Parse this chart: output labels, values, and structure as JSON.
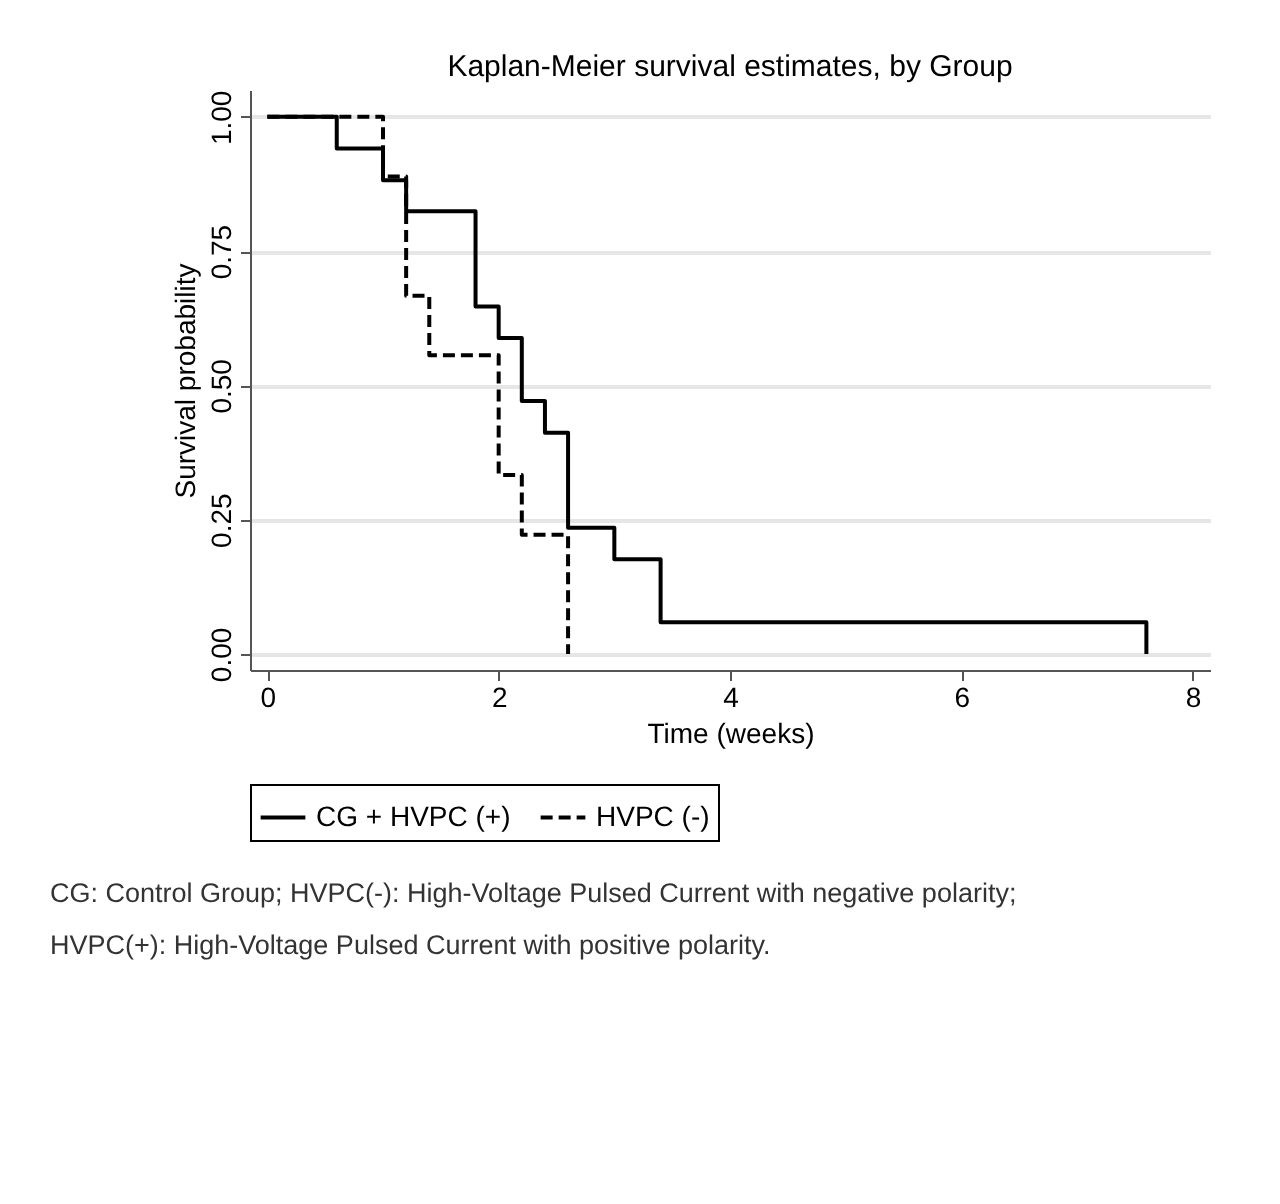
{
  "chart_data": {
    "type": "step",
    "title": "Kaplan-Meier survival estimates, by Group",
    "xlabel": "Time (weeks)",
    "ylabel": "Survival probability",
    "series": [
      {
        "name": "CG + HVPC (+)",
        "color": "#000000",
        "line_style": "solid",
        "x": [
          0,
          0.6,
          1.0,
          1.2,
          1.8,
          2.0,
          2.2,
          2.4,
          2.6,
          3.0,
          3.4,
          7.6
        ],
        "values": [
          1.0,
          0.941,
          0.882,
          0.824,
          0.647,
          0.588,
          0.471,
          0.412,
          0.235,
          0.176,
          0.059,
          0.0
        ]
      },
      {
        "name": "HVPC (-)",
        "color": "#000000",
        "line_style": "dashed",
        "x": [
          0,
          1.0,
          1.2,
          1.4,
          2.0,
          2.2,
          2.6
        ],
        "values": [
          1.0,
          0.889,
          0.667,
          0.556,
          0.333,
          0.222,
          0.0
        ]
      }
    ],
    "xlim": [
      -0.15,
      8.15
    ],
    "xticks": [
      0,
      2,
      4,
      6,
      8
    ],
    "ylim": [
      -0.03,
      1.05
    ],
    "yticks": [
      {
        "value": 0,
        "label": "0.00"
      },
      {
        "value": 0.25,
        "label": "0.25"
      },
      {
        "value": 0.5,
        "label": "0.50"
      },
      {
        "value": 0.75,
        "label": "0.75"
      },
      {
        "value": 1,
        "label": "1.00"
      }
    ],
    "grid": "y",
    "legend": "bottom",
    "annotations": [
      "CG: Control Group; HVPC(-): High-Voltage Pulsed Current with negative polarity; HVPC(+): High-Voltage Pulsed Current with positive polarity."
    ]
  }
}
